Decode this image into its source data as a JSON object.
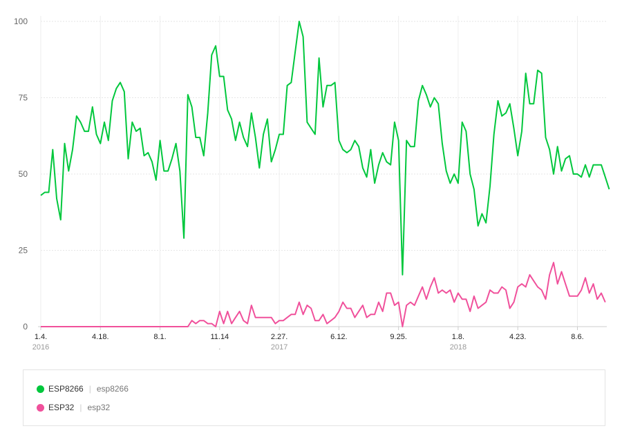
{
  "chart_data": {
    "type": "line",
    "yticks": [
      "0",
      "25",
      "50",
      "75",
      "100"
    ],
    "ylim": [
      0,
      100
    ],
    "xlim": [
      0,
      141
    ],
    "xticks": [
      {
        "i": 0,
        "label": "1.4.",
        "sub": "2016"
      },
      {
        "i": 15,
        "label": "4.18.",
        "sub": ""
      },
      {
        "i": 30,
        "label": "8.1.",
        "sub": ""
      },
      {
        "i": 45,
        "label": "11.14",
        "sub": "."
      },
      {
        "i": 60,
        "label": "2.27.",
        "sub": "2017"
      },
      {
        "i": 75,
        "label": "6.12.",
        "sub": ""
      },
      {
        "i": 90,
        "label": "9.25.",
        "sub": ""
      },
      {
        "i": 105,
        "label": "1.8.",
        "sub": "2018"
      },
      {
        "i": 120,
        "label": "4.23.",
        "sub": ""
      },
      {
        "i": 135,
        "label": "8.6.",
        "sub": ""
      }
    ],
    "series": [
      {
        "name": "ESP8266",
        "alias": "esp8266",
        "color": "#00c73c",
        "values": [
          43,
          44,
          44,
          58,
          42,
          35,
          60,
          51,
          58,
          69,
          67,
          64,
          64,
          72,
          63,
          60,
          67,
          61,
          74,
          78,
          80,
          77,
          55,
          67,
          64,
          65,
          56,
          57,
          54,
          48,
          61,
          51,
          51,
          55,
          60,
          51,
          29,
          76,
          72,
          62,
          62,
          56,
          70,
          89,
          92,
          82,
          82,
          71,
          68,
          61,
          67,
          62,
          59,
          70,
          62,
          52,
          63,
          68,
          54,
          58,
          63,
          63,
          79,
          80,
          90,
          100,
          95,
          67,
          65,
          63,
          88,
          72,
          79,
          79,
          80,
          61,
          58,
          57,
          58,
          61,
          59,
          52,
          49,
          58,
          47,
          53,
          57,
          54,
          53,
          67,
          61,
          17,
          61,
          59,
          59,
          74,
          79,
          76,
          72,
          75,
          73,
          60,
          51,
          47,
          50,
          47,
          67,
          64,
          50,
          45,
          33,
          37,
          34,
          46,
          63,
          74,
          69,
          70,
          73,
          65,
          56,
          64,
          83,
          73,
          73,
          84,
          83,
          62,
          58,
          50,
          59,
          51,
          55,
          56,
          50,
          50,
          49,
          53,
          49,
          53,
          53,
          53,
          49,
          45
        ]
      },
      {
        "name": "ESP32",
        "alias": "esp32",
        "color": "#f0509b",
        "values": [
          0,
          0,
          0,
          0,
          0,
          0,
          0,
          0,
          0,
          0,
          0,
          0,
          0,
          0,
          0,
          0,
          0,
          0,
          0,
          0,
          0,
          0,
          0,
          0,
          0,
          0,
          0,
          0,
          0,
          0,
          0,
          0,
          0,
          0,
          0,
          0,
          0,
          0,
          2,
          1,
          2,
          2,
          1,
          1,
          0,
          5,
          1,
          5,
          1,
          3,
          5,
          2,
          1,
          7,
          3,
          3,
          3,
          3,
          3,
          1,
          2,
          2,
          3,
          4,
          4,
          8,
          4,
          7,
          6,
          2,
          2,
          4,
          1,
          2,
          3,
          5,
          8,
          6,
          6,
          3,
          5,
          7,
          3,
          4,
          4,
          8,
          5,
          11,
          11,
          7,
          8,
          0,
          7,
          8,
          7,
          10,
          13,
          9,
          13,
          16,
          11,
          12,
          11,
          12,
          8,
          11,
          9,
          9,
          5,
          10,
          6,
          7,
          8,
          12,
          11,
          11,
          13,
          12,
          6,
          8,
          13,
          14,
          13,
          17,
          15,
          13,
          12,
          9,
          17,
          21,
          14,
          18,
          14,
          10,
          10,
          10,
          12,
          16,
          11,
          14,
          9,
          11,
          8
        ]
      }
    ]
  },
  "legend": {
    "items": [
      {
        "label": "ESP8266",
        "alias": "esp8266",
        "color": "#00c73c"
      },
      {
        "label": "ESP32",
        "alias": "esp32",
        "color": "#f0509b"
      }
    ]
  }
}
